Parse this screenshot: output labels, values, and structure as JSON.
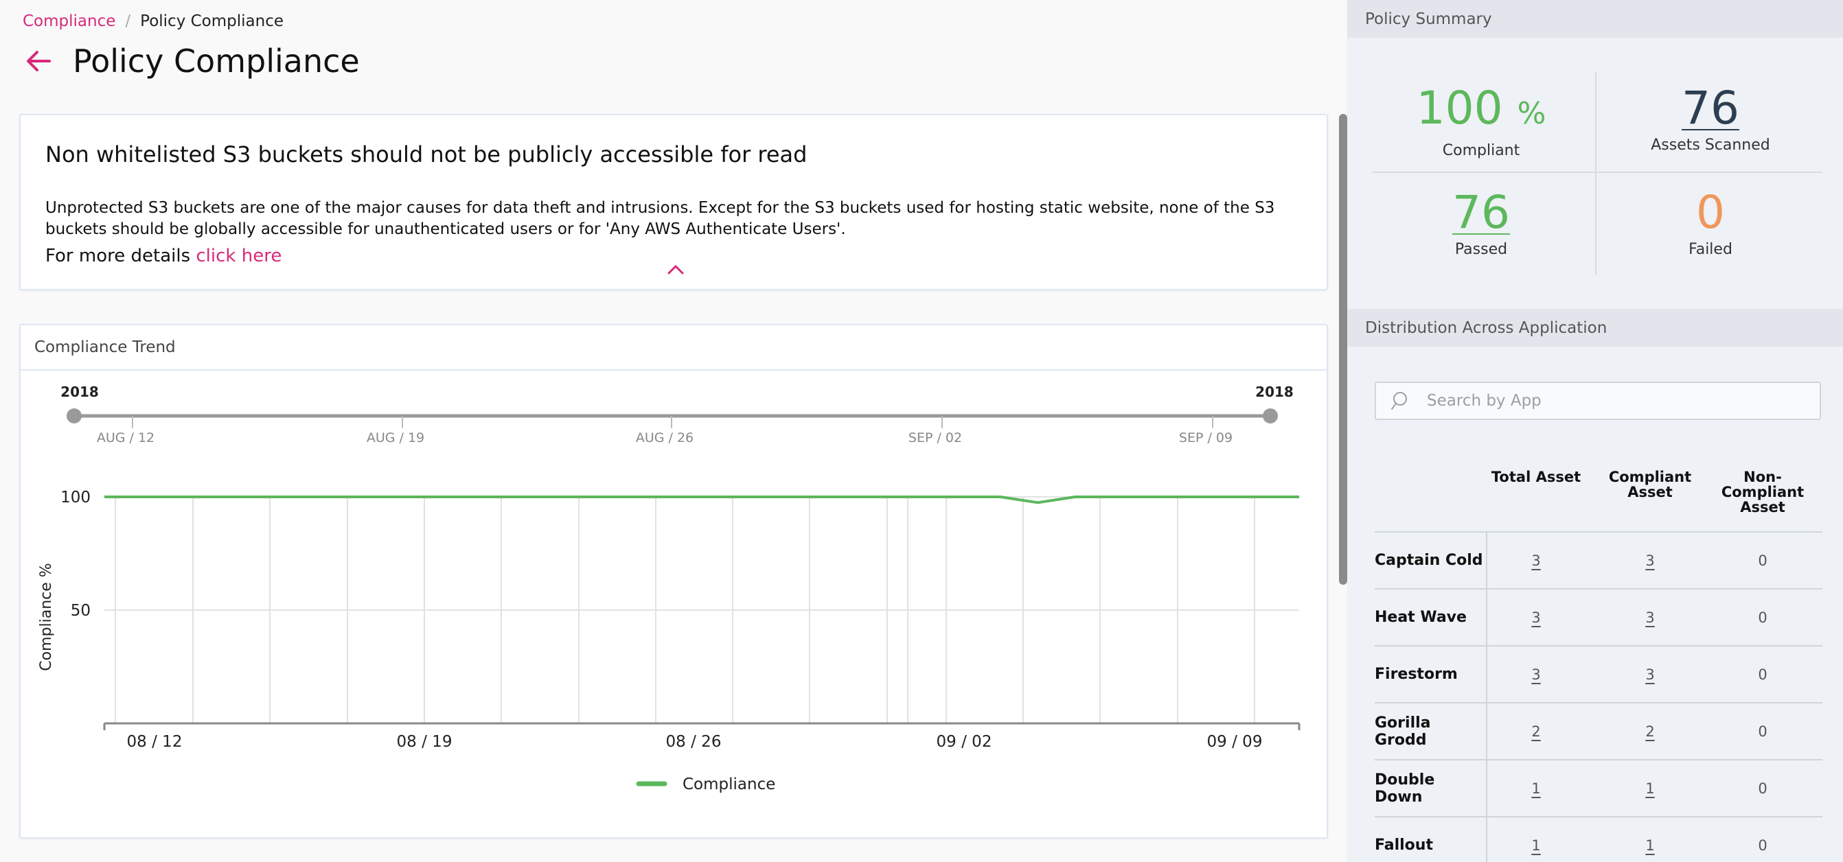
{
  "breadcrumb": {
    "parent": "Compliance",
    "separator": "/",
    "current": "Policy Compliance"
  },
  "page": {
    "title": "Policy Compliance"
  },
  "policy": {
    "name": "Non whitelisted S3 buckets should not be publicly accessible for read",
    "description": "Unprotected S3 buckets are one of the major causes for data theft and intrusions. Except for the S3 buckets used for hosting static website, none of the S3 buckets should be globally accessible for unauthenticated users or for 'Any AWS Authenticate Users'.",
    "details_prefix": "For more details",
    "details_link": "click here"
  },
  "trend": {
    "header": "Compliance Trend",
    "slider": {
      "start_year": "2018",
      "end_year": "2018",
      "ticks": [
        "AUG / 12",
        "AUG / 19",
        "AUG / 26",
        "SEP / 02",
        "SEP / 09"
      ]
    }
  },
  "chart_data": {
    "type": "line",
    "ylabel": "Compliance %",
    "xlabel": "",
    "yticks": [
      100,
      50
    ],
    "ylim": [
      0,
      100
    ],
    "xticks": [
      "08 / 12",
      "08 / 19",
      "08 / 26",
      "09 / 02",
      "09 / 09"
    ],
    "legend": "bottom",
    "grid": true,
    "series": [
      {
        "name": "Compliance",
        "color": "#5cb85c",
        "x": [
          "08/11",
          "08/12",
          "08/13",
          "08/14",
          "08/15",
          "08/16",
          "08/17",
          "08/18",
          "08/19",
          "08/20",
          "08/21",
          "08/22",
          "08/23",
          "08/24",
          "08/25",
          "08/26",
          "08/27",
          "08/28",
          "08/29",
          "08/30",
          "08/31",
          "09/01",
          "09/02",
          "09/03",
          "09/04",
          "09/05",
          "09/06",
          "09/07",
          "09/08",
          "09/09",
          "09/10",
          "09/11",
          "09/12"
        ],
        "values": [
          100,
          100,
          100,
          100,
          100,
          100,
          100,
          100,
          100,
          100,
          100,
          100,
          100,
          100,
          100,
          100,
          100,
          100,
          100,
          100,
          100,
          100,
          100,
          100,
          100,
          97.5,
          100,
          100,
          100,
          100,
          100,
          100,
          100
        ]
      }
    ]
  },
  "summary": {
    "header": "Policy Summary",
    "compliant_value": "100",
    "compliant_unit": "%",
    "compliant_label": "Compliant",
    "scanned_value": "76",
    "scanned_label": "Assets Scanned",
    "passed_value": "76",
    "passed_label": "Passed",
    "failed_value": "0",
    "failed_label": "Failed"
  },
  "distribution": {
    "header": "Distribution Across Application",
    "search_placeholder": "Search by App",
    "columns": {
      "total": [
        "Total Asset"
      ],
      "compliant": [
        "Compliant",
        "Asset"
      ],
      "noncompliant": [
        "Non-",
        "Compliant",
        "Asset"
      ]
    },
    "rows": [
      {
        "app": "Captain Cold",
        "total": "3",
        "compliant": "3",
        "noncompliant": "0"
      },
      {
        "app": "Heat Wave",
        "total": "3",
        "compliant": "3",
        "noncompliant": "0"
      },
      {
        "app": "Firestorm",
        "total": "3",
        "compliant": "3",
        "noncompliant": "0"
      },
      {
        "app": "Gorilla Grodd",
        "total": "2",
        "compliant": "2",
        "noncompliant": "0"
      },
      {
        "app": "Double Down",
        "total": "1",
        "compliant": "1",
        "noncompliant": "0"
      },
      {
        "app": "Fallout",
        "total": "1",
        "compliant": "1",
        "noncompliant": "0"
      }
    ]
  },
  "colors": {
    "accent": "#d8297a",
    "green": "#5cb85c",
    "orange": "#f0965a",
    "navy": "#2c3e50"
  }
}
